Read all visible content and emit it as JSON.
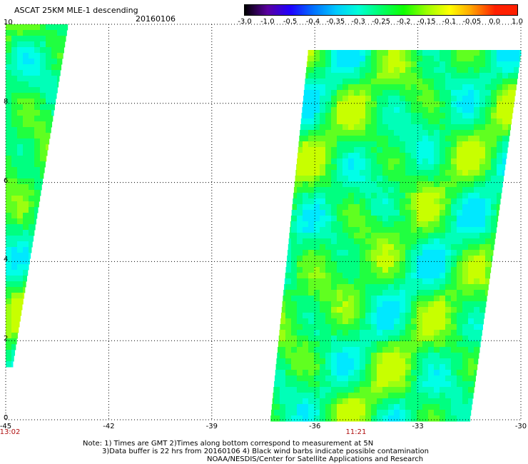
{
  "header": {
    "title": "ASCAT 25KM MLE-1 descending",
    "date": "20160106"
  },
  "colorbar": {
    "labels": [
      "-3.0",
      "-1.0",
      "-0.5",
      "-0.4",
      "-0.35",
      "-0.3",
      "-0.25",
      "-0.2",
      "-0.15",
      "-0.1",
      "-0.05",
      "0.0",
      "1.0"
    ],
    "colors": [
      "#000000",
      "#5a00a0",
      "#1f00ff",
      "#0070ff",
      "#00c8ff",
      "#00ffd8",
      "#00ff6a",
      "#10ff00",
      "#9bff00",
      "#ffff00",
      "#ffa000",
      "#ff2000"
    ]
  },
  "map": {
    "lon_ticks": [
      "-45",
      "-42",
      "-39",
      "-36",
      "-33",
      "-30"
    ],
    "lat_ticks": [
      "0",
      "2",
      "4",
      "6",
      "8",
      "10"
    ],
    "lon_range": [
      -45,
      -30
    ],
    "lat_range": [
      0,
      10
    ],
    "pass_times": [
      {
        "label": "13:02",
        "lon": -45
      },
      {
        "label": "11:21",
        "lon": -34.8
      }
    ],
    "swaths": [
      {
        "name": "west",
        "north_lon_range": [
          -45,
          -43.2
        ],
        "south_lon_range": [
          -45,
          -44.8
        ]
      },
      {
        "name": "east",
        "north_lon_range": [
          -36.2,
          -30
        ],
        "south_lon_range": [
          -37.3,
          -31.5
        ]
      }
    ],
    "grid": "dotted at 3 degree longitude / 2 degree latitude"
  },
  "notes": [
    "Note: 1) Times are GMT 2)Times along bottom correspond to measurement at 5N",
    "3)Data buffer is 22 hrs from 20160106 4) Black wind barbs indicate possible contamination",
    "NOAA/NESDIS/Center for Satellite Applications and Research"
  ]
}
